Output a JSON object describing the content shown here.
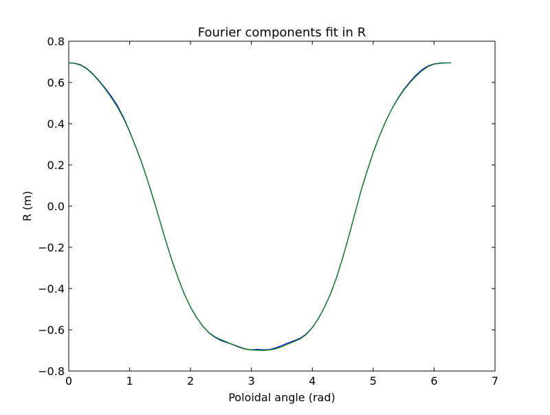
{
  "chart_data": {
    "type": "line",
    "title": "Fourier components fit in R",
    "xlabel": "Poloidal angle (rad)",
    "ylabel": "R (m)",
    "xlim": [
      0,
      7
    ],
    "ylim": [
      -0.8,
      0.8
    ],
    "xticks": [
      "0",
      "1",
      "2",
      "3",
      "4",
      "5",
      "6",
      "7"
    ],
    "yticks": [
      "0.8",
      "0.6",
      "0.4",
      "0.2",
      "0.0",
      "−0.2",
      "−0.4",
      "−0.6",
      "−0.8"
    ],
    "grid": false,
    "legend": "none",
    "series": [
      {
        "color": "#0000ff",
        "x": [
          0.0,
          0.1,
          0.2,
          0.3,
          0.4,
          0.5,
          0.6,
          0.7,
          0.8,
          0.9,
          1.0,
          1.1,
          1.2,
          1.3,
          1.4,
          1.5,
          1.6,
          1.7,
          1.8,
          1.9,
          2.0,
          2.1,
          2.2,
          2.3,
          2.4,
          2.5,
          2.6,
          2.7,
          2.8,
          2.9,
          3.0,
          3.1,
          3.2,
          3.3,
          3.4,
          3.5,
          3.6,
          3.7,
          3.8,
          3.9,
          4.0,
          4.1,
          4.2,
          4.3,
          4.4,
          4.5,
          4.6,
          4.7,
          4.8,
          4.9,
          5.0,
          5.1,
          5.2,
          5.3,
          5.4,
          5.5,
          5.6,
          5.7,
          5.8,
          5.9,
          6.0,
          6.1,
          6.2,
          6.28
        ],
        "y": [
          0.695,
          0.693,
          0.685,
          0.667,
          0.64,
          0.608,
          0.572,
          0.532,
          0.487,
          0.43,
          0.362,
          0.288,
          0.21,
          0.12,
          0.025,
          -0.075,
          -0.175,
          -0.268,
          -0.352,
          -0.428,
          -0.49,
          -0.54,
          -0.582,
          -0.614,
          -0.636,
          -0.652,
          -0.662,
          -0.672,
          -0.683,
          -0.693,
          -0.697,
          -0.695,
          -0.697,
          -0.696,
          -0.688,
          -0.676,
          -0.664,
          -0.653,
          -0.641,
          -0.621,
          -0.589,
          -0.545,
          -0.49,
          -0.425,
          -0.345,
          -0.25,
          -0.145,
          -0.035,
          0.075,
          0.17,
          0.26,
          0.338,
          0.408,
          0.468,
          0.52,
          0.565,
          0.602,
          0.635,
          0.661,
          0.68,
          0.69,
          0.694,
          0.695,
          0.695
        ]
      },
      {
        "color": "#008000",
        "x": [
          0.0,
          0.1,
          0.2,
          0.3,
          0.4,
          0.5,
          0.6,
          0.7,
          0.8,
          0.9,
          1.0,
          1.1,
          1.2,
          1.3,
          1.4,
          1.5,
          1.6,
          1.7,
          1.8,
          1.9,
          2.0,
          2.1,
          2.2,
          2.3,
          2.4,
          2.5,
          2.6,
          2.7,
          2.8,
          2.9,
          3.0,
          3.1,
          3.2,
          3.3,
          3.4,
          3.5,
          3.6,
          3.7,
          3.8,
          3.9,
          4.0,
          4.1,
          4.2,
          4.3,
          4.4,
          4.5,
          4.6,
          4.7,
          4.8,
          4.9,
          5.0,
          5.1,
          5.2,
          5.3,
          5.4,
          5.5,
          5.6,
          5.7,
          5.8,
          5.9,
          6.0,
          6.1,
          6.2,
          6.28
        ],
        "y": [
          0.695,
          0.692,
          0.683,
          0.665,
          0.638,
          0.605,
          0.568,
          0.526,
          0.48,
          0.425,
          0.36,
          0.287,
          0.209,
          0.12,
          0.025,
          -0.075,
          -0.175,
          -0.268,
          -0.352,
          -0.428,
          -0.49,
          -0.54,
          -0.582,
          -0.613,
          -0.634,
          -0.648,
          -0.66,
          -0.673,
          -0.685,
          -0.694,
          -0.698,
          -0.699,
          -0.7,
          -0.698,
          -0.692,
          -0.682,
          -0.669,
          -0.657,
          -0.644,
          -0.623,
          -0.59,
          -0.546,
          -0.49,
          -0.425,
          -0.345,
          -0.25,
          -0.145,
          -0.035,
          0.075,
          0.17,
          0.26,
          0.338,
          0.408,
          0.468,
          0.518,
          0.562,
          0.598,
          0.63,
          0.657,
          0.677,
          0.689,
          0.693,
          0.695,
          0.695
        ]
      }
    ]
  }
}
